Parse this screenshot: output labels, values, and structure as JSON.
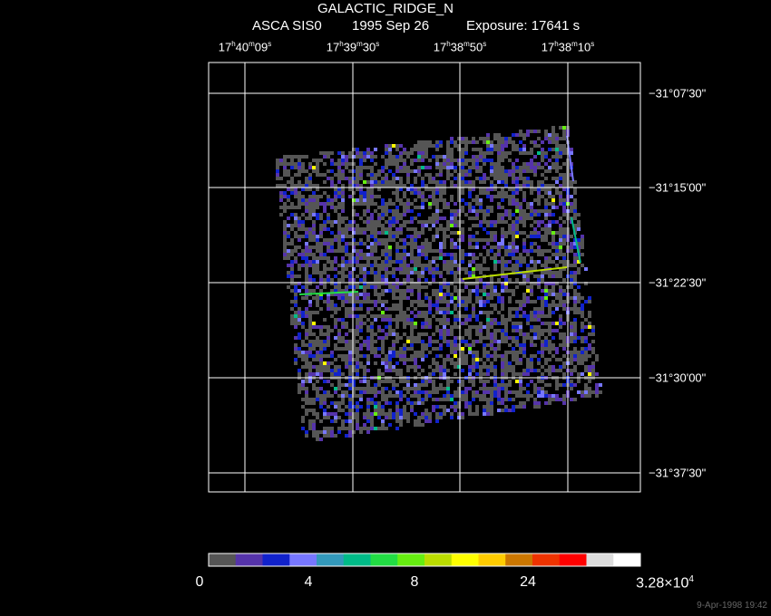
{
  "header": {
    "object": "GALACTIC_RIDGE_N",
    "instrument": "ASCA SIS0",
    "date": "1995 Sep 26",
    "exposure": "Exposure: 17641 s"
  },
  "ra_ticks": [
    {
      "h": "17",
      "m": "40",
      "s": "09"
    },
    {
      "h": "17",
      "m": "39",
      "s": "30"
    },
    {
      "h": "17",
      "m": "38",
      "s": "50"
    },
    {
      "h": "17",
      "m": "38",
      "s": "10"
    }
  ],
  "dec_ticks": [
    "−31°07'30\"",
    "−31°15'00\"",
    "−31°22'30\"",
    "−31°30'00\"",
    "−31°37'30\""
  ],
  "colorbar": {
    "labels": [
      "0",
      "4",
      "8",
      "24"
    ],
    "max_mantissa": "3.28×10",
    "max_exponent": "4",
    "colors": [
      "#555555",
      "#5533aa",
      "#1122cc",
      "#7777ff",
      "#3399bb",
      "#00bb88",
      "#22dd44",
      "#66ee11",
      "#bbdd00",
      "#ffff00",
      "#ffcc00",
      "#cc7700",
      "#ee3300",
      "#ff0000",
      "#dddddd",
      "#ffffff"
    ]
  },
  "timestamp": "9-Apr-1998 19:42"
}
